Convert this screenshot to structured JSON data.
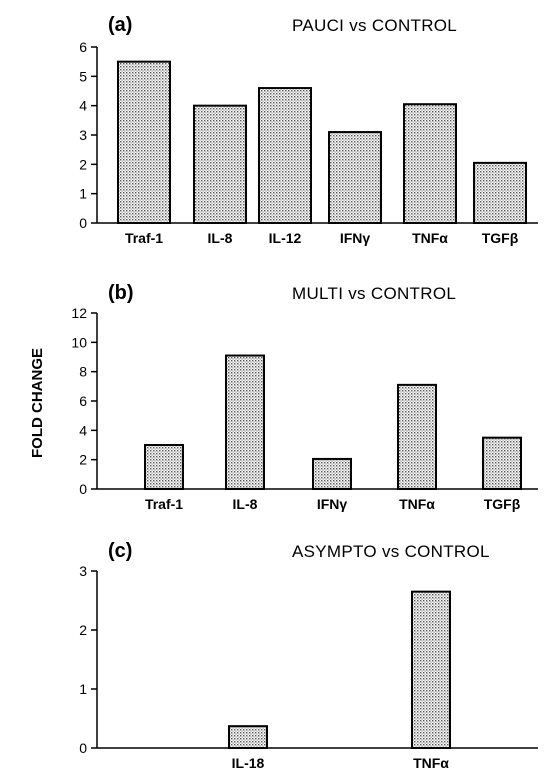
{
  "figure": {
    "ylabel": "FOLD CHANGE"
  },
  "chart_data": [
    {
      "type": "bar",
      "panel": "(a)",
      "title": "PAUCI  vs CONTROL",
      "categories": [
        "Traf-1",
        "IL-8",
        "IL-12",
        "IFNγ",
        "TNFα",
        "TGFβ"
      ],
      "values": [
        5.5,
        4.0,
        4.6,
        3.1,
        4.05,
        2.05
      ],
      "ylim": [
        0,
        6
      ],
      "yticks": [
        0,
        1,
        2,
        3,
        4,
        5,
        6
      ],
      "grid": false,
      "bar_fill": "#d9d9d9",
      "bar_edge": "#000000"
    },
    {
      "type": "bar",
      "panel": "(b)",
      "title": "MULTI  vs CONTROL",
      "categories": [
        "Traf-1",
        "IL-8",
        "IFNγ",
        "TNFα",
        "TGFβ"
      ],
      "values": [
        3.0,
        9.1,
        2.05,
        7.1,
        3.5
      ],
      "ylim": [
        0,
        12
      ],
      "yticks": [
        0,
        2,
        4,
        6,
        8,
        10,
        12
      ],
      "grid": false,
      "bar_fill": "#d9d9d9",
      "bar_edge": "#000000"
    },
    {
      "type": "bar",
      "panel": "(c)",
      "title": "ASYMPTO vs CONTROL",
      "categories": [
        "IL-18",
        "TNFα"
      ],
      "values": [
        0.37,
        2.65
      ],
      "ylim": [
        0,
        3
      ],
      "yticks": [
        0,
        1,
        2,
        3
      ],
      "grid": false,
      "bar_fill": "#d9d9d9",
      "bar_edge": "#000000"
    }
  ]
}
